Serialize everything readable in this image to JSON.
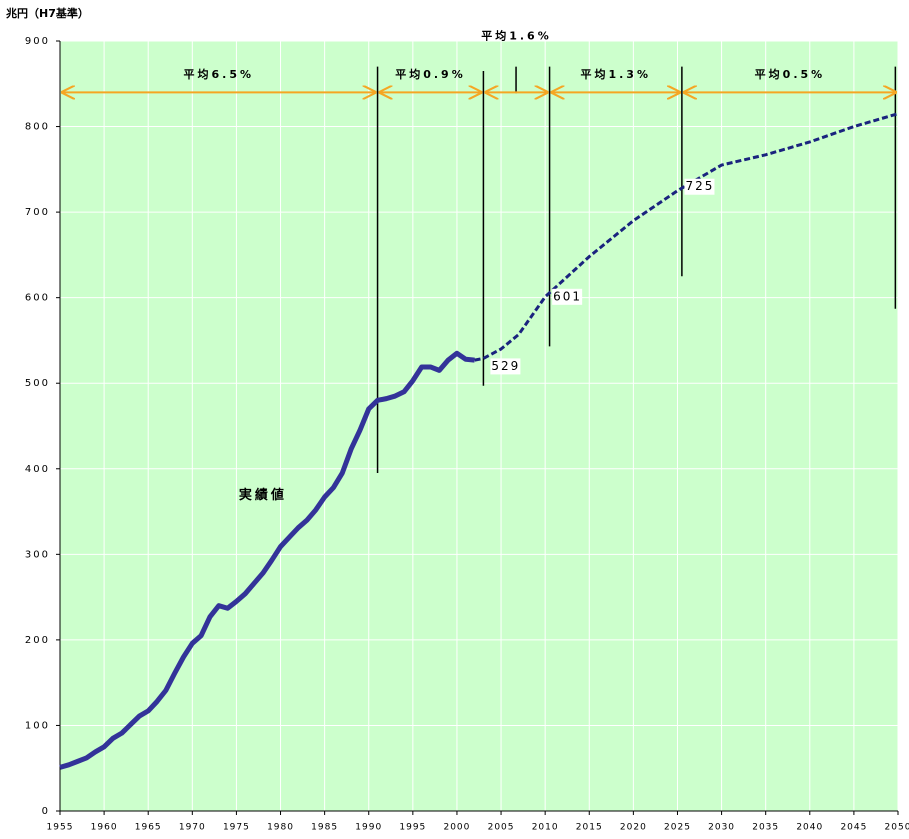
{
  "chart_data": {
    "type": "line",
    "y_axis_label": "兆円（H7基準）",
    "xlim": [
      1955,
      2050
    ],
    "xticks": [
      1955,
      1960,
      1965,
      1970,
      1975,
      1980,
      1985,
      1990,
      1995,
      2000,
      2005,
      2010,
      2015,
      2020,
      2025,
      2030,
      2035,
      2040,
      2045,
      2050
    ],
    "ylim": [
      0,
      900
    ],
    "yticks": [
      0,
      100,
      200,
      300,
      400,
      500,
      600,
      700,
      800,
      900
    ],
    "grid": true,
    "background": "#ccffcc",
    "series": [
      {
        "name": "実績値",
        "color": "#333399",
        "style": "solid",
        "x": [
          1955,
          1956,
          1957,
          1958,
          1959,
          1960,
          1961,
          1962,
          1963,
          1964,
          1965,
          1966,
          1967,
          1968,
          1969,
          1970,
          1971,
          1972,
          1973,
          1974,
          1975,
          1976,
          1977,
          1978,
          1979,
          1980,
          1981,
          1982,
          1983,
          1984,
          1985,
          1986,
          1987,
          1988,
          1989,
          1990,
          1991,
          1992,
          1993,
          1994,
          1995,
          1996,
          1997,
          1998,
          1999,
          2000,
          2001,
          2002
        ],
        "values": [
          51,
          54,
          58,
          62,
          69,
          75,
          85,
          91,
          101,
          111,
          117,
          128,
          141,
          161,
          180,
          196,
          205,
          227,
          240,
          237,
          245,
          254,
          266,
          278,
          293,
          309,
          320,
          331,
          340,
          352,
          367,
          378,
          395,
          423,
          445,
          470,
          480,
          482,
          485,
          490,
          503,
          519,
          519,
          515,
          527,
          535,
          528,
          527
        ],
        "label_x": 1978,
        "label_y": 369
      },
      {
        "color": "#1a237e",
        "style": "dashed",
        "x": [
          2002,
          2003,
          2005,
          2007,
          2010,
          2015,
          2020,
          2025,
          2030,
          2035,
          2040,
          2045,
          2050
        ],
        "values": [
          527,
          529,
          540,
          557,
          601,
          648,
          690,
          725,
          755,
          767,
          782,
          800,
          815
        ],
        "value_labels": [
          null,
          "529",
          null,
          null,
          "601",
          null,
          null,
          "725",
          null,
          null,
          null,
          null,
          null
        ]
      }
    ],
    "periods": [
      {
        "label": "平均6.5%",
        "from": 1955,
        "to": 1991,
        "y": 840,
        "label_y": 860
      },
      {
        "label": "平均0.9%",
        "from": 1991,
        "to": 2003,
        "y": 840,
        "label_y": 860
      },
      {
        "label": "平均1.6%",
        "from": 2003,
        "to": 2010.5,
        "y": 840,
        "label_y": 905
      },
      {
        "label": "平均1.3%",
        "from": 2010.5,
        "to": 2025.5,
        "y": 840,
        "label_y": 860
      },
      {
        "label": "平均0.5%",
        "from": 2025.5,
        "to": 2050,
        "y": 840,
        "label_y": 860
      }
    ],
    "dividers": [
      {
        "x": 1991,
        "range": [
          395,
          870
        ]
      },
      {
        "x": 2003,
        "range": [
          497,
          865
        ]
      },
      {
        "x": 2006.7,
        "range": [
          839,
          870
        ]
      },
      {
        "x": 2010.5,
        "range": [
          543,
          870
        ]
      },
      {
        "x": 2025.5,
        "range": [
          625,
          870
        ]
      },
      {
        "x": 2049.7,
        "range": [
          587,
          870
        ]
      }
    ],
    "arrow_color": "#f5a623"
  }
}
